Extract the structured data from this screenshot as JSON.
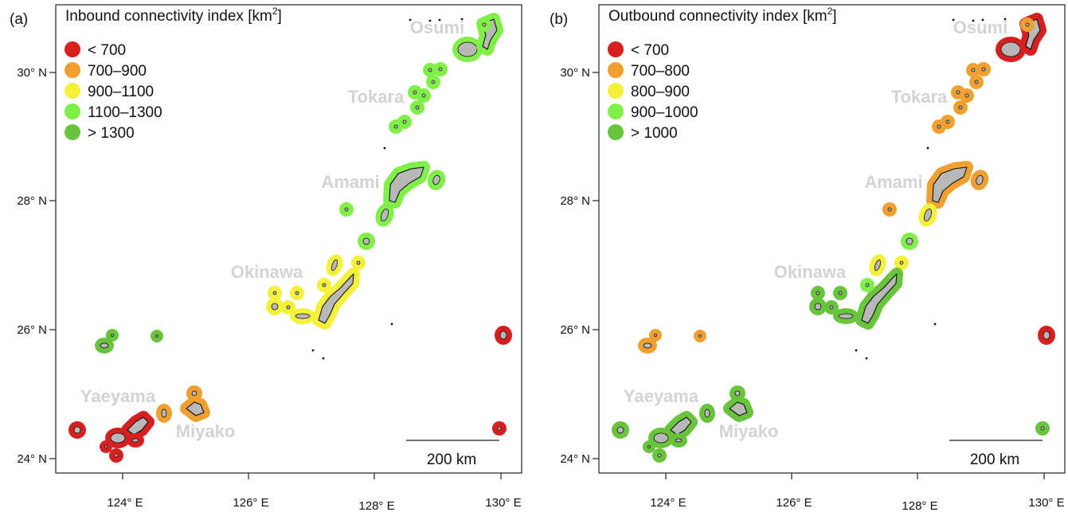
{
  "colors": {
    "cls1": "#d62020",
    "cls2": "#f0a030",
    "cls3": "#f5f03a",
    "cls4": "#80ef48",
    "cls5": "#68c43a",
    "land": "#b8b8b8"
  },
  "axes": {
    "lat_labels": [
      "30° N",
      "28° N",
      "26° N",
      "24° N"
    ],
    "lon_labels": [
      "124° E",
      "126° E",
      "128° E",
      "130° E"
    ]
  },
  "regions": [
    "Osumi",
    "Tokara",
    "Amami",
    "Okinawa",
    "Yaeyama",
    "Miyako"
  ],
  "scale_bar": {
    "label": "200 km"
  },
  "panels": [
    {
      "tag": "(a)",
      "title_main": "Inbound  connectivity index [km",
      "title_sup": "2",
      "title_end": "]",
      "legend": [
        "< 700",
        "700–900",
        "900–1100",
        "1100–1300",
        "> 1300"
      ],
      "island_classes": {
        "osumi_main": 4,
        "osumi_sat": 4,
        "tokara": 4,
        "amami_main": 4,
        "amami_east": 4,
        "amami_west": 4,
        "amami_south": 4,
        "amami_tip": 4,
        "okinawa_north": 3,
        "okinawa_main": 3,
        "okinawa_west": 3,
        "kerama": 3,
        "okinawa_east": 3,
        "daito": 1,
        "senkaku": 5,
        "yaeyama_main": 1,
        "yaeyama_west": 1,
        "yaeyama_south": 1,
        "yonaguni": 1,
        "miyako_main": 2,
        "miyako_east": 2,
        "hateruma": 1
      }
    },
    {
      "tag": "(b)",
      "title_main": "Outbound  connectivity index [km",
      "title_sup": "2",
      "title_end": "]",
      "legend": [
        "< 700",
        "700–800",
        "800–900",
        "900–1000",
        "> 1000"
      ],
      "island_classes": {
        "osumi_main": 1,
        "osumi_sat": 1,
        "tokara": 2,
        "amami_main": 2,
        "amami_east": 2,
        "amami_west": 2,
        "amami_south": 3,
        "amami_tip": 4,
        "okinawa_north": 3,
        "okinawa_main": 5,
        "okinawa_west": 5,
        "kerama": 5,
        "okinawa_east": 4,
        "daito": 1,
        "senkaku": 2,
        "yaeyama_main": 5,
        "yaeyama_west": 5,
        "yaeyama_south": 5,
        "yonaguni": 5,
        "miyako_main": 5,
        "miyako_east": 5,
        "hateruma": 5
      }
    }
  ]
}
